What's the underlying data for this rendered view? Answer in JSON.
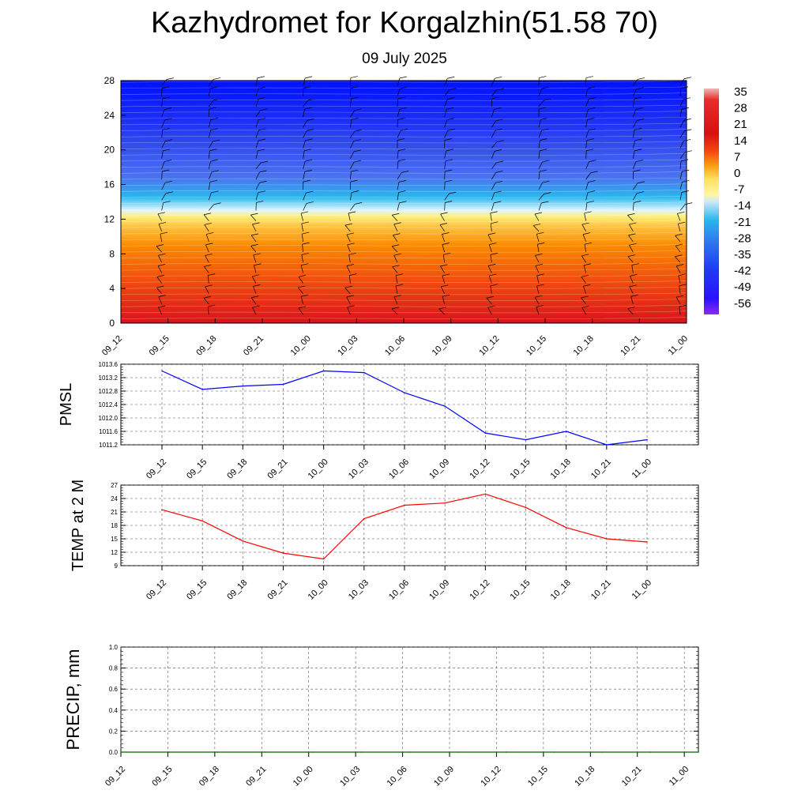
{
  "title": "Kazhydromet for Korgalzhin(51.58 70)",
  "subtitle": "09 July 2025",
  "chart_data": [
    {
      "type": "heatmap",
      "description_axis": "height levels",
      "x_categories": [
        "09_12",
        "09_15",
        "09_18",
        "09_21",
        "10_00",
        "10_03",
        "10_06",
        "10_09",
        "10_12",
        "10_15",
        "10_18",
        "10_21",
        "11_00"
      ],
      "y_ticks": [
        0,
        4,
        8,
        12,
        16,
        20,
        24,
        28
      ],
      "ylim": [
        0,
        28
      ],
      "colorbar_labels": [
        "35",
        "28",
        "21",
        "14",
        "7",
        "0",
        "-7",
        "-14",
        "-21",
        "-28",
        "-35",
        "-42",
        "-49",
        "-56"
      ],
      "colors": {
        "hot": "#d8131a",
        "warm": "#fb8a00",
        "yellow": "#fff07a",
        "cyan": "#2ab8ef",
        "blue": "#1b2ef5",
        "deepblue": "#0010ff",
        "violet": "#8a2bf0"
      }
    },
    {
      "type": "line",
      "ylabel": "PMSL",
      "categories": [
        "09_12",
        "09_15",
        "09_18",
        "09_21",
        "10_00",
        "10_03",
        "10_06",
        "10_09",
        "10_12",
        "10_15",
        "10_18",
        "10_21",
        "11_00"
      ],
      "y_ticks": [
        "1011.2",
        "1011.6",
        "1012.0",
        "1012.4",
        "1012.8",
        "1013.2",
        "1013.6"
      ],
      "ylim": [
        1011.2,
        1013.6
      ],
      "series": [
        {
          "values": [
            1013.4,
            1012.85,
            1012.95,
            1013.0,
            1013.4,
            1013.35,
            1012.75,
            1012.35,
            1011.55,
            1011.35,
            1011.6,
            1011.2,
            1011.35
          ],
          "color": "#0000ff"
        }
      ]
    },
    {
      "type": "line",
      "ylabel": "TEMP at 2 M",
      "categories": [
        "09_12",
        "09_15",
        "09_18",
        "09_21",
        "10_00",
        "10_03",
        "10_06",
        "10_09",
        "10_12",
        "10_15",
        "10_18",
        "10_21",
        "11_00"
      ],
      "y_ticks": [
        "9",
        "12",
        "15",
        "18",
        "21",
        "24",
        "27"
      ],
      "ylim": [
        9,
        27
      ],
      "series": [
        {
          "values": [
            21.5,
            19.0,
            14.5,
            11.8,
            10.5,
            19.5,
            22.5,
            23.0,
            25.0,
            22.0,
            17.5,
            15.0,
            14.3
          ],
          "color": "#ff0000"
        }
      ]
    },
    {
      "type": "line",
      "ylabel": "PRECIP, mm",
      "categories": [
        "09_12",
        "09_15",
        "09_18",
        "09_21",
        "10_00",
        "10_03",
        "10_06",
        "10_09",
        "10_12",
        "10_15",
        "10_18",
        "10_21",
        "11_00"
      ],
      "y_ticks": [
        "0.0",
        "0.2",
        "0.4",
        "0.6",
        "0.8",
        "1.0"
      ],
      "ylim": [
        0,
        1
      ],
      "series": [
        {
          "values": [
            0,
            0,
            0,
            0,
            0,
            0,
            0,
            0,
            0,
            0,
            0,
            0,
            0
          ],
          "color": "#006400"
        }
      ]
    }
  ]
}
